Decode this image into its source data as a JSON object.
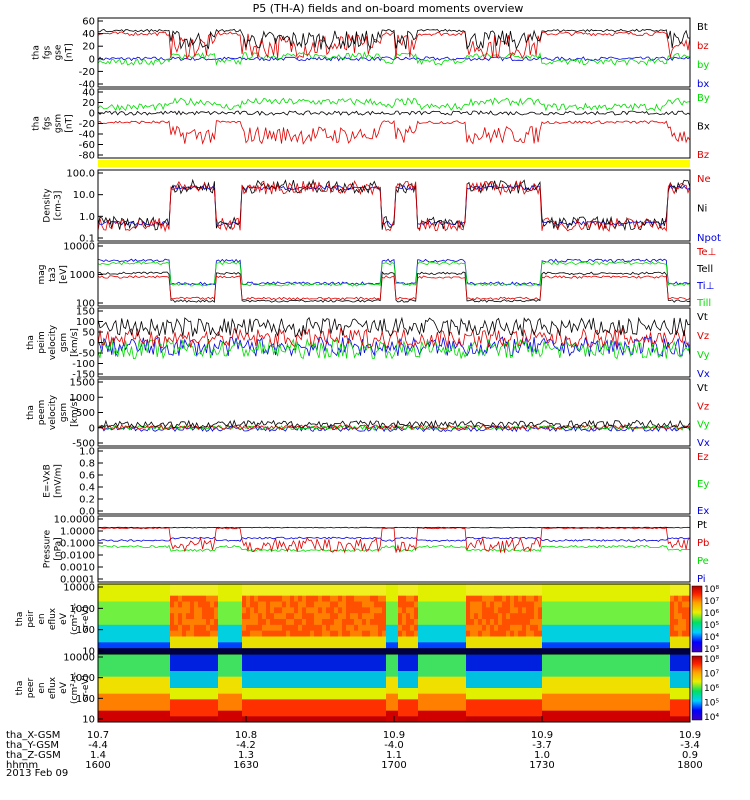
{
  "chart_data": {
    "type": "line",
    "title": "P5 (TH-A) fields and on-board moments overview",
    "date": "2013 Feb 09",
    "x_ticks": [
      {
        "hhmm": "1600",
        "x_gsm": "10.7",
        "y_gsm": "-4.4",
        "z_gsm": "1.4"
      },
      {
        "hhmm": "1630",
        "x_gsm": "10.8",
        "y_gsm": "-4.2",
        "z_gsm": "1.3"
      },
      {
        "hhmm": "1700",
        "x_gsm": "10.9",
        "y_gsm": "-4.0",
        "z_gsm": "1.1"
      },
      {
        "hhmm": "1730",
        "x_gsm": "10.9",
        "y_gsm": "-3.7",
        "z_gsm": "1.0"
      },
      {
        "hhmm": "1800",
        "x_gsm": "10.9",
        "y_gsm": "-3.4",
        "z_gsm": "0.9"
      }
    ],
    "x_row_labels": [
      "tha_X-GSM",
      "tha_Y-GSM",
      "tha_Z-GSM",
      "hhmm"
    ],
    "colors": {
      "black": "#000000",
      "red": "#e00000",
      "green": "#00dd00",
      "blue": "#0000e0",
      "yellow": "#ffff00"
    },
    "panels": [
      {
        "id": "fgs_gse",
        "ylabel": [
          "tha",
          "fgs",
          "gse",
          "[nT]"
        ],
        "yticks": [
          "60",
          "40",
          "20",
          "0",
          "-20",
          "-40"
        ],
        "legend": [
          {
            "text": "Bt",
            "color": "black"
          },
          {
            "text": "bz",
            "color": "red"
          },
          {
            "text": "by",
            "color": "green"
          },
          {
            "text": "bx",
            "color": "blue"
          }
        ]
      },
      {
        "id": "fgs_gsm",
        "ylabel": [
          "tha",
          "fgs",
          "gsm",
          "[nT]"
        ],
        "yticks": [
          "40",
          "20",
          "0",
          "-20",
          "-40",
          "-60",
          "-80"
        ],
        "legend": [
          {
            "text": "By",
            "color": "green"
          },
          {
            "text": "Bx",
            "color": "black"
          },
          {
            "text": "Bz",
            "color": "red"
          }
        ]
      },
      {
        "id": "density",
        "ylabel": [
          "Density",
          "[cm-3]"
        ],
        "yticks": [
          "100.0",
          "10.0",
          "1.0",
          "0.1"
        ],
        "legend": [
          {
            "text": "Ne",
            "color": "red"
          },
          {
            "text": "Ni",
            "color": "black"
          },
          {
            "text": "Npot",
            "color": "blue"
          }
        ]
      },
      {
        "id": "temp",
        "ylabel": [
          "mag",
          "ta3",
          "[eV]"
        ],
        "yticks": [
          "10000",
          "1000",
          "100"
        ],
        "legend": [
          {
            "text": "Te⊥",
            "color": "red"
          },
          {
            "text": "Tell",
            "color": "black"
          },
          {
            "text": "Ti⊥",
            "color": "blue"
          },
          {
            "text": "Till",
            "color": "green"
          }
        ]
      },
      {
        "id": "peim_v",
        "ylabel": [
          "tha",
          "peim",
          "velocity",
          "gsm",
          "[km/s]"
        ],
        "yticks": [
          "150",
          "100",
          "50",
          "0",
          "-50",
          "-100",
          "-150"
        ],
        "legend": [
          {
            "text": "Vt",
            "color": "black"
          },
          {
            "text": "Vz",
            "color": "red"
          },
          {
            "text": "Vy",
            "color": "green"
          },
          {
            "text": "Vx",
            "color": "blue"
          }
        ]
      },
      {
        "id": "peem_v",
        "ylabel": [
          "tha",
          "peem",
          "velocity",
          "gsm",
          "[km/s]"
        ],
        "yticks": [
          "1500",
          "1000",
          "500",
          "0",
          "-500"
        ],
        "legend": [
          {
            "text": "Vt",
            "color": "black"
          },
          {
            "text": "Vz",
            "color": "red"
          },
          {
            "text": "Vy",
            "color": "green"
          },
          {
            "text": "Vx",
            "color": "blue"
          }
        ]
      },
      {
        "id": "efield",
        "ylabel": [
          "E=-VxB",
          "[mV/m]"
        ],
        "yticks": [
          "1.0",
          "0.8",
          "0.6",
          "0.4",
          "0.2",
          "0.0"
        ],
        "legend": [
          {
            "text": "Ez",
            "color": "red"
          },
          {
            "text": "Ey",
            "color": "green"
          },
          {
            "text": "Ex",
            "color": "blue"
          }
        ]
      },
      {
        "id": "pressure",
        "ylabel": [
          "Pressure",
          "[nPa]"
        ],
        "yticks": [
          "10.0000",
          "1.0000",
          "0.1000",
          "0.0100",
          "0.0010",
          "0.0001"
        ],
        "legend": [
          {
            "text": "Pt",
            "color": "black"
          },
          {
            "text": "Pb",
            "color": "red"
          },
          {
            "text": "Pe",
            "color": "green"
          },
          {
            "text": "Pi",
            "color": "blue"
          }
        ]
      },
      {
        "id": "peir_spec",
        "ylabel": [
          "tha",
          "peir",
          "en",
          "eflux",
          "eV",
          "(cm²-s-",
          "sr-eV)"
        ],
        "yticks": [
          "10000",
          "1000",
          "100",
          "10"
        ],
        "colorbar": [
          "10⁸",
          "10⁷",
          "10⁶",
          "10⁵",
          "10⁴",
          "10³"
        ]
      },
      {
        "id": "peer_spec",
        "ylabel": [
          "tha",
          "peer",
          "en",
          "eflux",
          "eV",
          "(cm²-s-",
          "sr-eV)"
        ],
        "yticks": [
          "10000",
          "1000",
          "100",
          "10"
        ],
        "colorbar": [
          "10⁸",
          "10⁷",
          "10⁶",
          "10⁵",
          "10⁴"
        ]
      }
    ]
  }
}
